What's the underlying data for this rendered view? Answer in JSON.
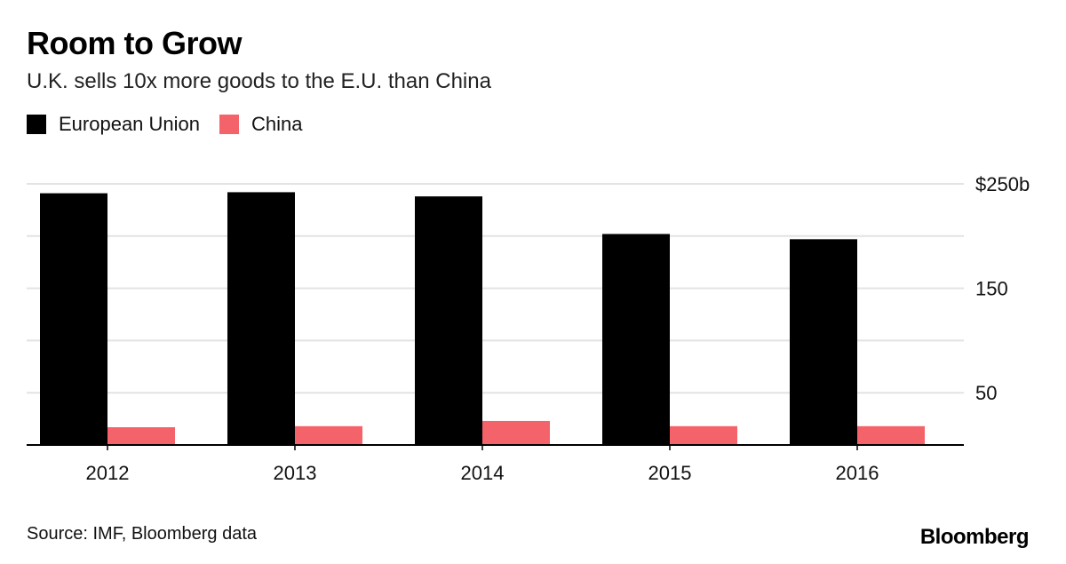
{
  "header": {
    "title": "Room to Grow",
    "subtitle": "U.K. sells 10x more goods to the E.U. than China"
  },
  "legend": [
    {
      "label": "European Union",
      "color": "#000000"
    },
    {
      "label": "China",
      "color": "#f4636a"
    }
  ],
  "footer": {
    "source": "Source: IMF, Bloomberg data",
    "brand": "Bloomberg"
  },
  "chart_data": {
    "type": "bar",
    "title": "Room to Grow",
    "subtitle": "U.K. sells 10x more goods to the E.U. than China",
    "categories": [
      "2012",
      "2013",
      "2014",
      "2015",
      "2016"
    ],
    "series": [
      {
        "name": "European Union",
        "color": "#000000",
        "values": [
          241,
          242,
          238,
          202,
          197
        ]
      },
      {
        "name": "China",
        "color": "#f4636a",
        "values": [
          17,
          18,
          23,
          18,
          18
        ]
      }
    ],
    "ylim": [
      0,
      250
    ],
    "y_ticks": [
      {
        "value": 250,
        "label": "$250b"
      },
      {
        "value": 200,
        "label": ""
      },
      {
        "value": 150,
        "label": "150"
      },
      {
        "value": 100,
        "label": ""
      },
      {
        "value": 50,
        "label": "50"
      }
    ],
    "y_axis_position": "right",
    "grid": true,
    "legend_position": "top-left",
    "xlabel": "",
    "ylabel": ""
  }
}
